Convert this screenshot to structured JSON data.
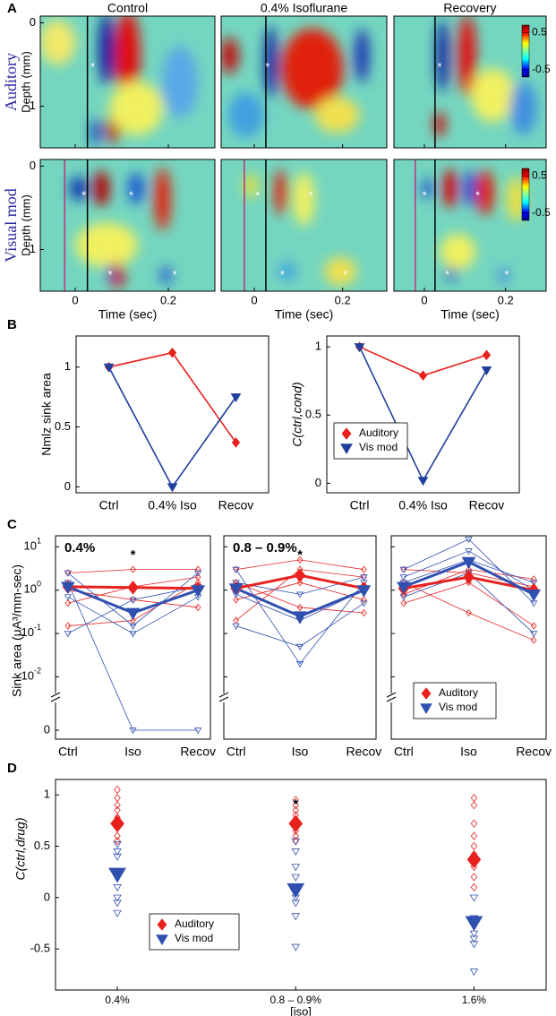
{
  "chart_data": [
    {
      "type": "heatmap",
      "label": "A",
      "titles": [
        "Control",
        "0.4% Isoflurane",
        "Recovery"
      ],
      "rows": [
        "Auditory",
        "Visual mod"
      ],
      "ylabel": "Depth (mm)",
      "xlabel": "Time (sec)",
      "xlim": [
        -0.075,
        0.3
      ],
      "xticks": [
        0,
        0.2
      ],
      "ylim": [
        -0.08,
        1.5
      ],
      "yticks": [
        0,
        1
      ],
      "colorbar_ticks": [
        0.5,
        -0.5
      ],
      "marker": "*"
    },
    {
      "type": "line",
      "label": "B",
      "categories": [
        "Ctrl",
        "0.4% Iso",
        "Recov"
      ],
      "ylabel": "Nmlz sink area",
      "ylim": [
        -0.05,
        1.26
      ],
      "yticks": [
        0,
        0.5,
        1
      ],
      "series": [
        {
          "name": "Auditory",
          "color": "#e8201e",
          "marker": "diamond",
          "values": [
            1,
            1.12,
            0.37
          ]
        },
        {
          "name": "Vis mod",
          "color": "#1f3e9e",
          "marker": "triangle",
          "values": [
            1,
            0,
            0.75
          ]
        }
      ]
    },
    {
      "type": "line",
      "categories": [
        "Ctrl",
        "0.4% Iso",
        "Recov"
      ],
      "ylabel": "C(ctrl,cond)",
      "ylim": [
        -0.07,
        1.08
      ],
      "yticks": [
        0,
        0.5,
        1
      ],
      "legend": "center left",
      "series": [
        {
          "name": "Auditory",
          "color": "#e8201e",
          "marker": "diamond",
          "values": [
            1,
            0.79,
            0.94
          ]
        },
        {
          "name": "Vis mod",
          "color": "#1f3e9e",
          "marker": "triangle",
          "values": [
            1,
            0.02,
            0.83
          ]
        }
      ]
    },
    {
      "type": "logline",
      "label": "C",
      "annotation": "0.4%",
      "star": "*",
      "categories": [
        "Ctrl",
        "Iso",
        "Recov"
      ],
      "ylabel": "Sink area (μA³/mm-sec)",
      "log": true,
      "ylim": [
        0.005,
        18
      ],
      "yticks": [
        {
          "value": 0.01,
          "label": "10",
          "exponent": "-2"
        },
        {
          "value": 0.1,
          "label": "10",
          "exponent": "-1"
        },
        {
          "value": 1,
          "label": "10",
          "exponent": "0"
        },
        {
          "value": 10,
          "label": "10",
          "exponent": "1"
        },
        0
      ],
      "series": [
        {
          "name": "Auditory",
          "color": "#e8201e",
          "marker": "diamond",
          "values": [
            1.2,
            1.15,
            1.1
          ]
        },
        {
          "name": "Vis mod",
          "color": "#3050b0",
          "marker": "triangle",
          "values": [
            1.2,
            0.3,
            1.0
          ]
        }
      ],
      "individual": [
        {
          "color": "#e8201e",
          "values": [
            2.5,
            3.0,
            3.0
          ]
        },
        {
          "color": "#e8201e",
          "values": [
            1.0,
            0.6,
            0.4
          ]
        },
        {
          "color": "#e8201e",
          "values": [
            0.5,
            1.2,
            2.0
          ]
        },
        {
          "color": "#e8201e",
          "values": [
            0.15,
            0.2,
            1.5
          ]
        },
        {
          "color": "#3050b0",
          "values": [
            2.5,
            0.15,
            2.5
          ]
        },
        {
          "color": "#3050b0",
          "values": [
            1.5,
            0,
            0
          ]
        },
        {
          "color": "#3050b0",
          "values": [
            0.1,
            0.6,
            1.2
          ]
        },
        {
          "color": "#3050b0",
          "values": [
            0.7,
            0.1,
            0.7
          ]
        }
      ]
    },
    {
      "type": "logline",
      "annotation": "0.8 – 0.9%",
      "star": "*",
      "categories": [
        "Ctrl",
        "Iso",
        "Recov"
      ],
      "log": true,
      "ylim": [
        0.005,
        18
      ],
      "yticks": [
        {
          "value": 0.01,
          "label": "10",
          "exponent": "-2"
        },
        {
          "value": 0.1,
          "label": "10",
          "exponent": "-1"
        },
        {
          "value": 1,
          "label": "10",
          "exponent": "0"
        },
        {
          "value": 10,
          "label": "10",
          "exponent": "1"
        }
      ],
      "series": [
        {
          "name": "Auditory",
          "color": "#e8201e",
          "marker": "diamond",
          "values": [
            1.1,
            2.2,
            1.1
          ]
        },
        {
          "name": "Vis mod",
          "color": "#3050b0",
          "marker": "triangle",
          "values": [
            1.1,
            0.25,
            1.0
          ]
        }
      ],
      "individual": [
        {
          "color": "#e8201e",
          "values": [
            3,
            5,
            3
          ]
        },
        {
          "color": "#e8201e",
          "values": [
            0.6,
            1.5,
            0.6
          ]
        },
        {
          "color": "#e8201e",
          "values": [
            0.2,
            3,
            2
          ]
        },
        {
          "color": "#e8201e",
          "values": [
            1.5,
            0.4,
            0.3
          ]
        },
        {
          "color": "#3050b0",
          "values": [
            3,
            0.02,
            1.5
          ]
        },
        {
          "color": "#3050b0",
          "values": [
            0.15,
            0.05,
            0.5
          ]
        },
        {
          "color": "#3050b0",
          "values": [
            1.5,
            0.8,
            2
          ]
        },
        {
          "color": "#3050b0",
          "values": [
            0.8,
            0.2,
            1
          ]
        }
      ]
    },
    {
      "type": "logline",
      "categories": [
        "Ctrl",
        "Iso",
        "Recov"
      ],
      "log": true,
      "ylim": [
        0.005,
        18
      ],
      "legend": "lower right",
      "yticks": [
        {
          "value": 0.01,
          "label": "10",
          "exponent": "-2"
        },
        {
          "value": 0.1,
          "label": "10",
          "exponent": "-1"
        },
        {
          "value": 1,
          "label": "10",
          "exponent": "0"
        },
        {
          "value": 10,
          "label": "10",
          "exponent": "1"
        }
      ],
      "series": [
        {
          "name": "Auditory",
          "color": "#e8201e",
          "marker": "diamond",
          "values": [
            1.1,
            2.0,
            1.0
          ]
        },
        {
          "name": "Vis mod",
          "color": "#3050b0",
          "marker": "triangle",
          "values": [
            1.2,
            4.5,
            0.8
          ]
        }
      ],
      "individual": [
        {
          "color": "#e8201e",
          "values": [
            3,
            2.5,
            1.2
          ]
        },
        {
          "color": "#e8201e",
          "values": [
            0.5,
            1.5,
            0.15
          ]
        },
        {
          "color": "#e8201e",
          "values": [
            1.5,
            0.3,
            0.07
          ]
        },
        {
          "color": "#e8201e",
          "values": [
            0.8,
            3,
            1.8
          ]
        },
        {
          "color": "#3050b0",
          "values": [
            3,
            15,
            0.5
          ]
        },
        {
          "color": "#3050b0",
          "values": [
            2,
            8,
            1
          ]
        },
        {
          "color": "#3050b0",
          "values": [
            0.7,
            2.5,
            0.1
          ]
        },
        {
          "color": "#3050b0",
          "values": [
            1.5,
            5,
            1.5
          ]
        }
      ]
    },
    {
      "type": "scatter",
      "label": "D",
      "categories": [
        "0.4%",
        "0.8 – 0.9%",
        "1.6%"
      ],
      "xlabel": "[iso]",
      "ylabel": "C(ctrl,drug)",
      "star": "*",
      "ylim": [
        -0.9,
        1.15
      ],
      "yticks": [
        -0.5,
        0,
        0.5,
        1
      ],
      "legend": "lower left",
      "series": [
        {
          "name": "Auditory",
          "color": "#e8201e",
          "marker": "diamond",
          "values": [
            0.72,
            0.72,
            0.37
          ]
        },
        {
          "name": "Vis mod",
          "color": "#3050b0",
          "marker": "triangle",
          "values": [
            0.23,
            0.08,
            -0.24
          ]
        }
      ],
      "individual": [
        {
          "color": "#e8201e",
          "marker": "diamond",
          "values": [
            [
              1.05,
              0.97,
              0.9,
              0.85,
              0.78,
              0.7,
              0.6,
              0.55
            ],
            [
              0.95,
              0.9,
              0.85,
              0.8,
              0.76,
              0.7,
              0.65,
              0.6,
              0.55
            ],
            [
              0.97,
              0.9,
              0.72,
              0.6,
              0.5,
              0.42,
              0.3,
              0.2,
              0.1
            ]
          ]
        },
        {
          "color": "#3050b0",
          "marker": "triangle",
          "values": [
            [
              0.52,
              0.45,
              0.4,
              0.1,
              0.0,
              -0.05,
              -0.15
            ],
            [
              0.55,
              0.45,
              0.3,
              0.2,
              0.1,
              0.0,
              -0.05,
              -0.18,
              -0.48
            ],
            [
              0.0,
              -0.2,
              -0.35,
              -0.4,
              -0.45,
              -0.72
            ]
          ]
        }
      ]
    }
  ]
}
